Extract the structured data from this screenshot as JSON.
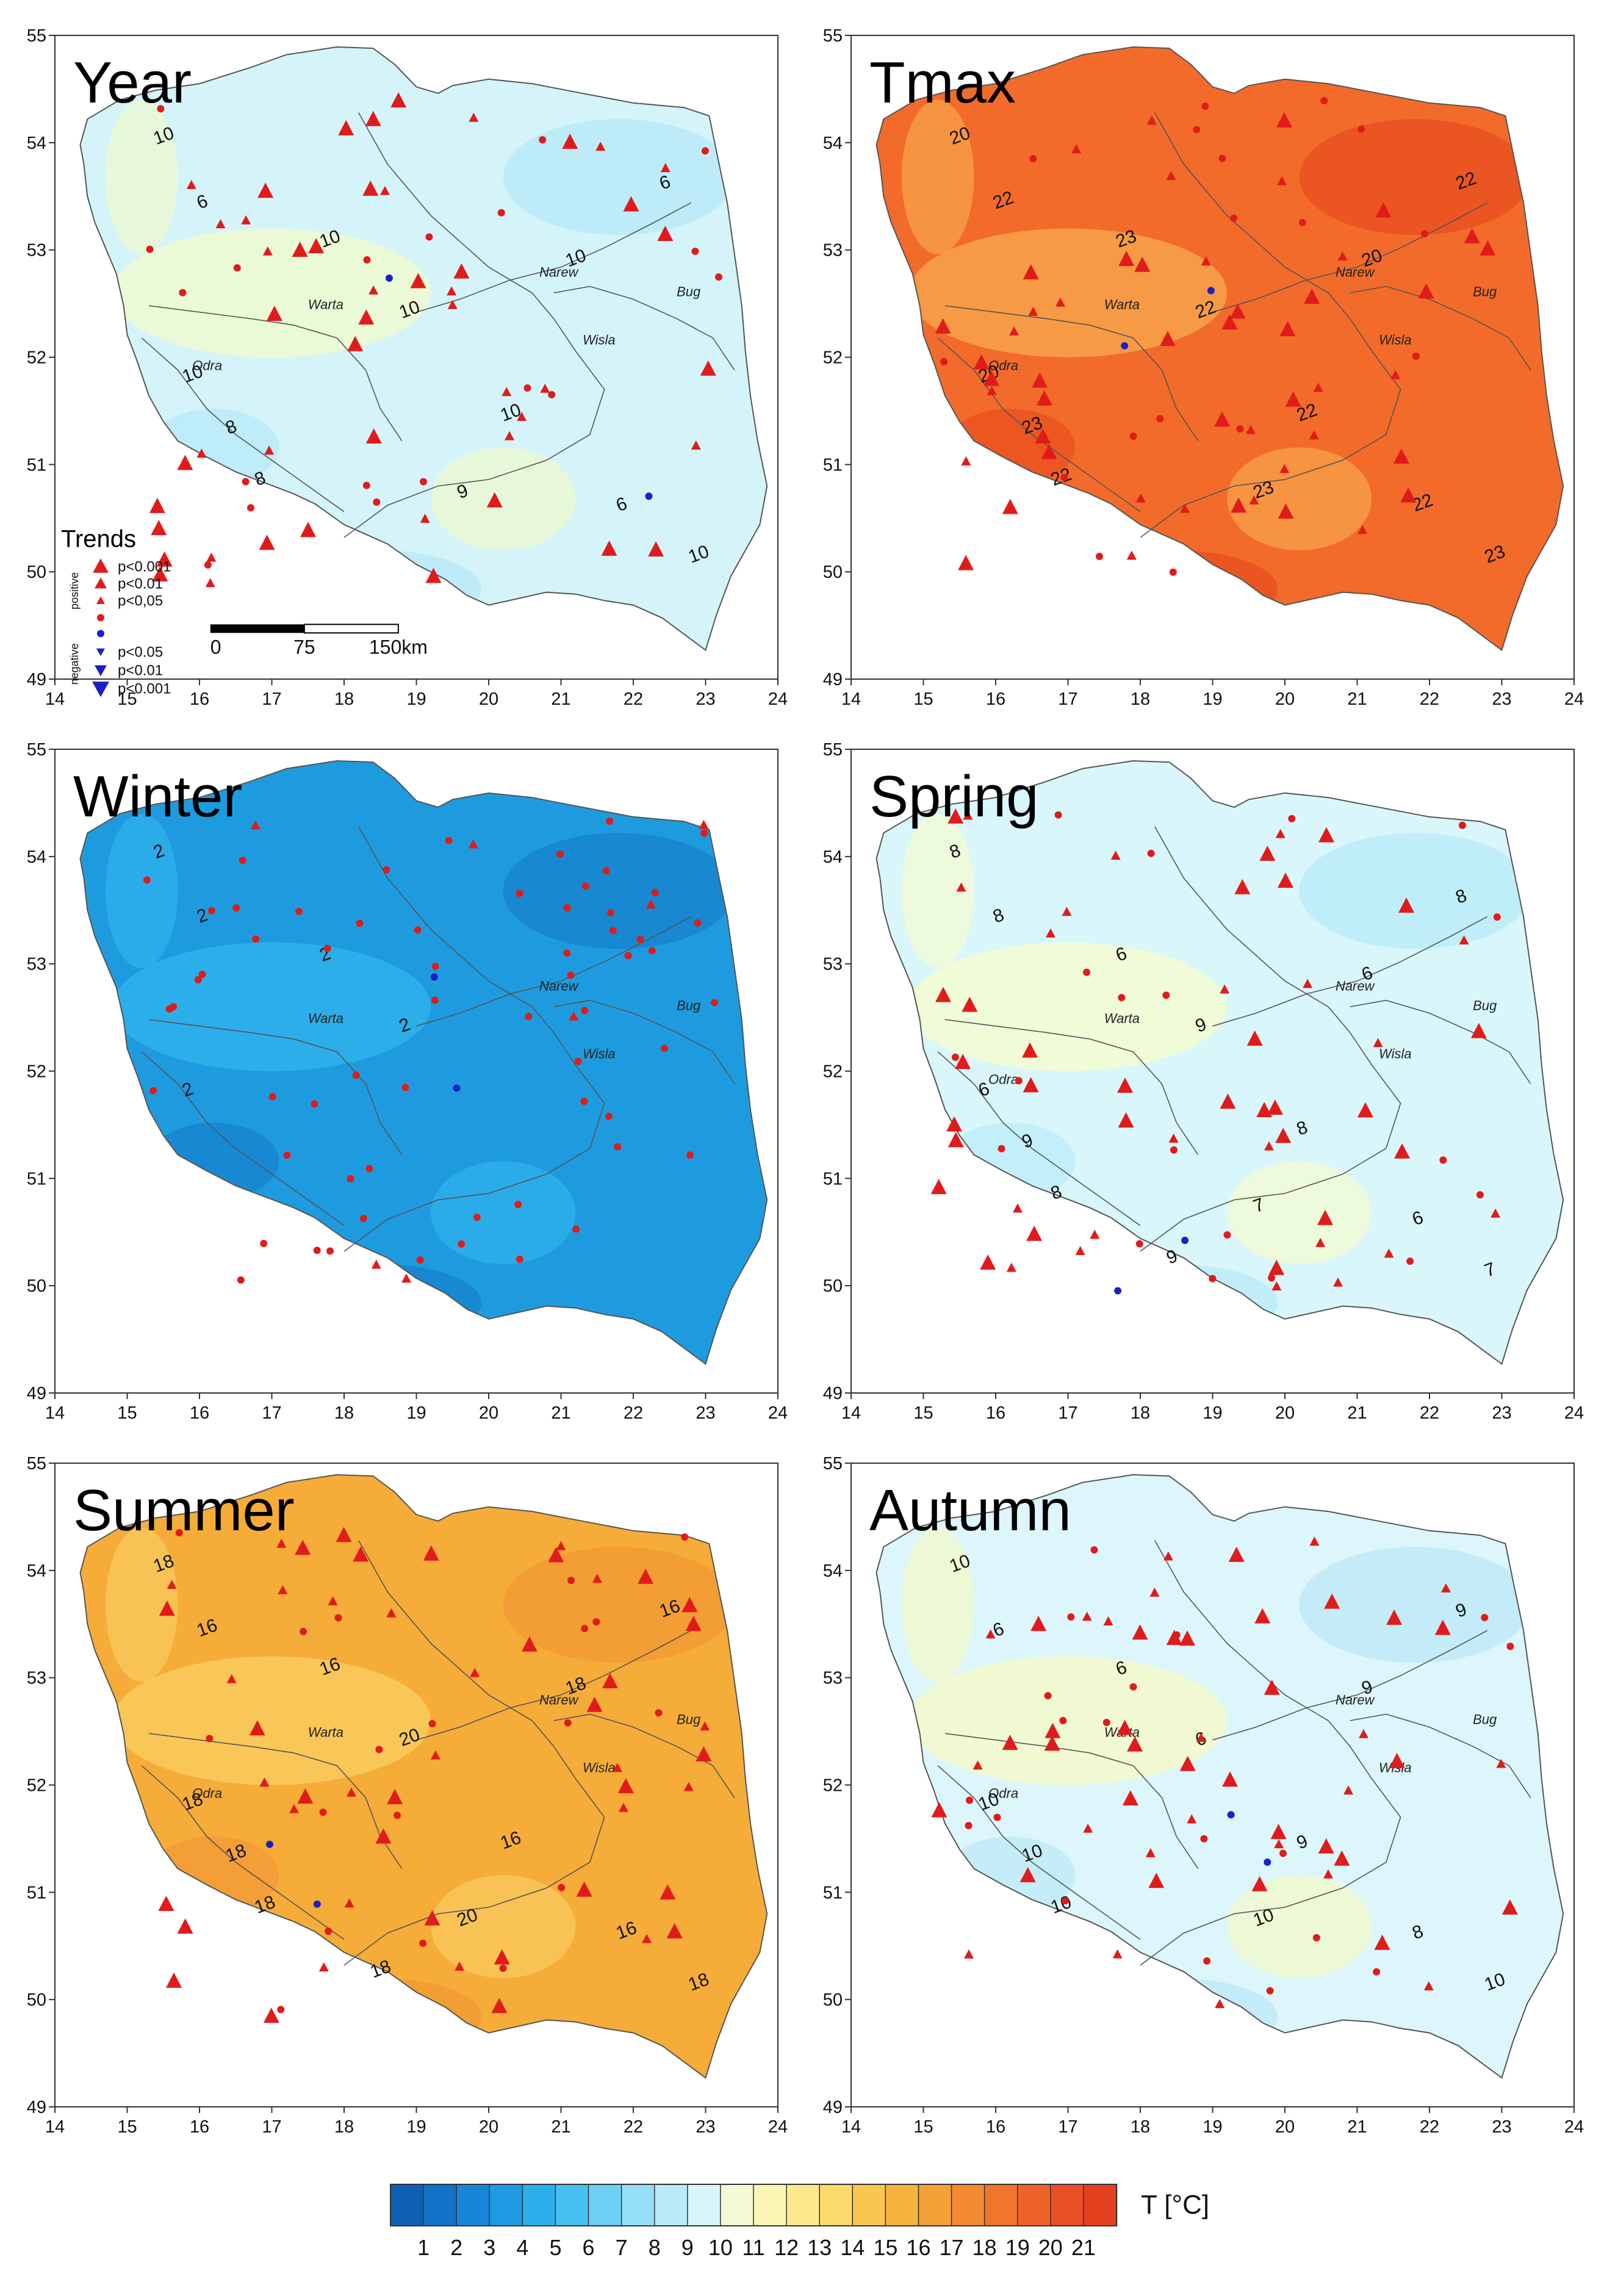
{
  "figure": {
    "axes": {
      "x_ticks": [
        "14",
        "15",
        "16",
        "17",
        "18",
        "19",
        "20",
        "21",
        "22",
        "23",
        "24"
      ],
      "y_ticks": [
        "55",
        "54",
        "53",
        "52",
        "51",
        "50",
        "49"
      ]
    },
    "panels": [
      {
        "title": "Year",
        "fill": "#d4f4fa",
        "c1": "#eefacf",
        "c2": "#b7eaf7",
        "contours": [
          "10",
          "6",
          "10",
          "10",
          "10",
          "8",
          "8",
          "9",
          "6",
          "10",
          "6",
          "10",
          "10"
        ]
      },
      {
        "title": "Tmax",
        "fill": "#f26b2a",
        "c1": "#f7a24a",
        "c2": "#e9501f",
        "contours": [
          "20",
          "22",
          "23",
          "22",
          "20",
          "23",
          "22",
          "23",
          "22",
          "20",
          "22",
          "23",
          "22"
        ]
      },
      {
        "title": "Winter",
        "fill": "#1e9bdf",
        "c1": "#2fb2ec",
        "c2": "#1583cd",
        "contours": [
          "2",
          "2",
          "2",
          "2",
          "2"
        ]
      },
      {
        "title": "Spring",
        "fill": "#d9f6fb",
        "c1": "#f3fbd0",
        "c2": "#b9ecf8",
        "contours": [
          "8",
          "8",
          "6",
          "9",
          "6",
          "9",
          "8",
          "7",
          "8",
          "6",
          "6",
          "7",
          "8",
          "9"
        ]
      },
      {
        "title": "Summer",
        "fill": "#f6ac38",
        "c1": "#f8cb5e",
        "c2": "#f29a35",
        "contours": [
          "18",
          "16",
          "16",
          "20",
          "18",
          "18",
          "18",
          "20",
          "16",
          "18",
          "16",
          "18",
          "16",
          "18"
        ]
      },
      {
        "title": "Autumn",
        "fill": "#dcf6fb",
        "c1": "#f3f9c9",
        "c2": "#bdeaf7",
        "contours": [
          "10",
          "6",
          "6",
          "6",
          "10",
          "10",
          "10",
          "10",
          "9",
          "9",
          "8",
          "10",
          "9"
        ]
      }
    ],
    "rivers": [
      "Warta",
      "Odra",
      "Narew",
      "Bug",
      "Wisla"
    ],
    "trend_legend": {
      "title": "Trends",
      "positive_label": "positive",
      "negative_label": "negative",
      "positive": [
        "p<0.001",
        "p<0.01",
        "p<0,05"
      ],
      "negative": [
        "p<0.05",
        "p<0.01",
        "p<0.001"
      ]
    },
    "scalebar": {
      "labels": [
        "0",
        "75",
        "150km"
      ]
    },
    "colorbar": {
      "title": "T [°C]",
      "labels": [
        "1",
        "2",
        "3",
        "4",
        "5",
        "6",
        "7",
        "8",
        "9",
        "10",
        "11",
        "12",
        "13",
        "14",
        "15",
        "16",
        "17",
        "18",
        "19",
        "20",
        "21"
      ],
      "colors": [
        "#0f5fb4",
        "#1172c8",
        "#1886d8",
        "#1f9ae2",
        "#2bb0ec",
        "#47c1f1",
        "#6ed0f4",
        "#95def7",
        "#b9eaf9",
        "#d9f5fb",
        "#f2fad6",
        "#fbf6b4",
        "#fce98e",
        "#fbd96a",
        "#f9c64f",
        "#f7b33f",
        "#f59f37",
        "#f38a32",
        "#f1752d",
        "#ee6128",
        "#e94f23",
        "#e34020"
      ],
      "marker_colors": {
        "positive": "#e11b1b",
        "negative": "#1a21c8"
      }
    }
  }
}
